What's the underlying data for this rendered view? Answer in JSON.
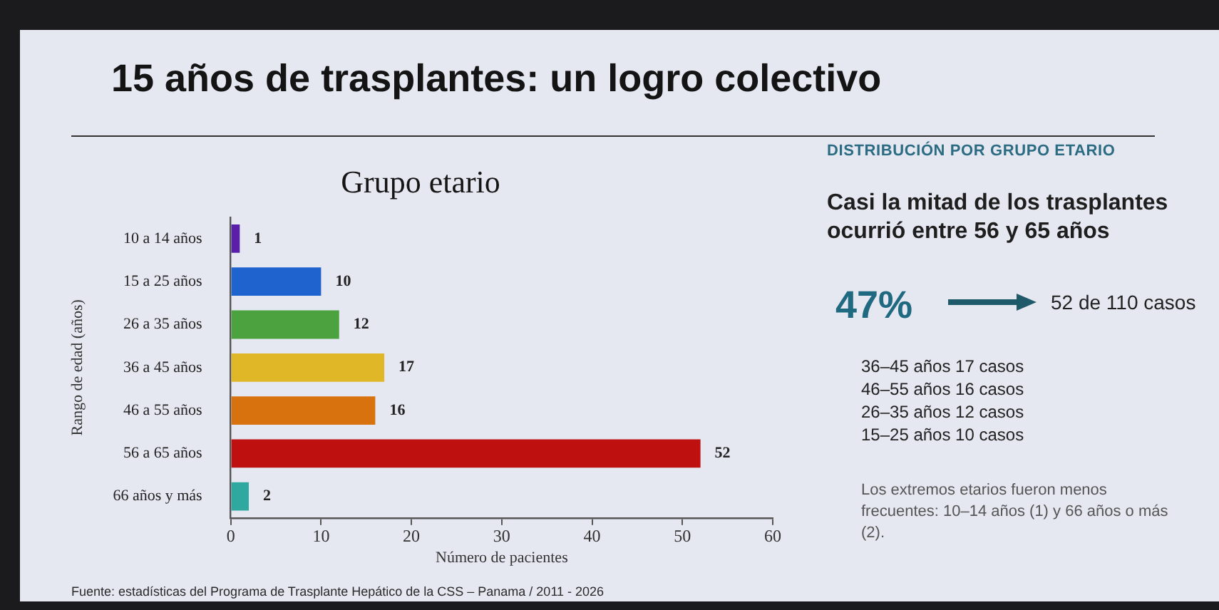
{
  "chart_data": {
    "type": "bar",
    "orientation": "horizontal",
    "title": "15 años de trasplantes: un logro colectivo",
    "subtitle": "Grupo etario",
    "xlabel": "Número de pacientes",
    "ylabel": "Rango de edad (años)",
    "categories": [
      "10 a 14 años",
      "15 a 25 años",
      "26 a 35 años",
      "36 a 45 años",
      "46 a 55 años",
      "56 a 65 años",
      "66 años y más"
    ],
    "values": [
      1,
      10,
      12,
      17,
      16,
      52,
      2
    ],
    "colors": [
      "#5a1fa8",
      "#1f63cf",
      "#4ba23f",
      "#e0b726",
      "#d8720f",
      "#bf1010",
      "#2fa9a0"
    ],
    "xlim": [
      0,
      60
    ],
    "xticks": [
      0,
      10,
      20,
      30,
      40,
      50,
      60
    ],
    "data_labels": true,
    "annotations": [
      "DISTRIBUCIÓN POR GRUPO ETARIO",
      "Casi la mitad de los trasplantes ocurrió entre 56 y 65 años",
      "47%",
      "52 de 110 casos",
      "36–45 años 17 casos",
      "46–55 años 16 casos",
      "26–35 años 12 casos",
      "15–25 años 10 casos",
      "Los extremos etarios fueron menos frecuentes: 10–14 años (1) y 66 años o más (2).",
      "Fuente: estadísticas del Programa de Trasplante Hepático de la CSS – Panama / 2011 - 2026"
    ]
  }
}
